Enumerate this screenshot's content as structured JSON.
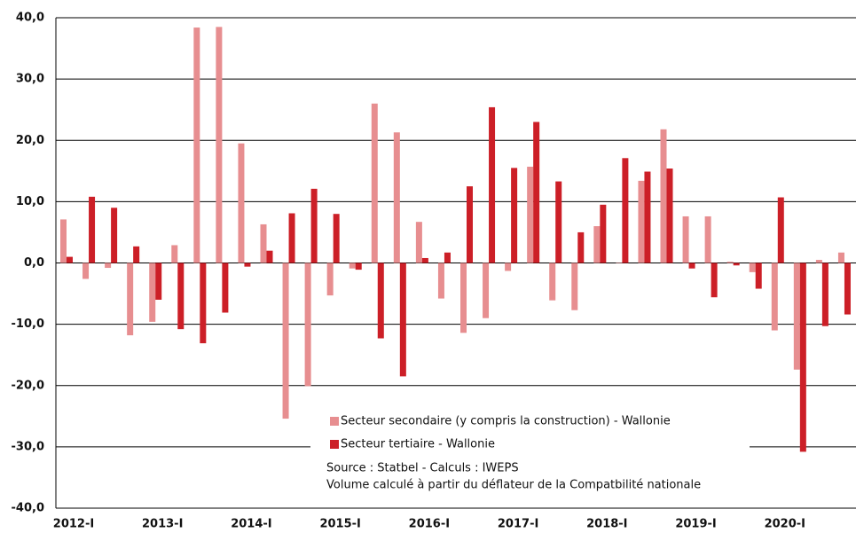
{
  "chart_data": {
    "type": "bar",
    "categories": [
      "2012-I",
      null,
      null,
      null,
      "2013-I",
      null,
      null,
      null,
      "2014-I",
      null,
      null,
      null,
      "2015-I",
      null,
      null,
      null,
      "2016-I",
      null,
      null,
      null,
      "2017-I",
      null,
      null,
      null,
      "2018-I",
      null,
      null,
      null,
      "2019-I",
      null,
      null,
      null,
      "2020-I",
      null,
      null,
      null
    ],
    "series": [
      {
        "name": "Secteur secondaire (y compris la construction) - Wallonie",
        "color": "#e78e90",
        "values": [
          7.1,
          -2.6,
          -0.8,
          -11.8,
          -9.6,
          2.9,
          38.4,
          38.5,
          19.5,
          6.3,
          -25.4,
          -20.1,
          -5.3,
          -0.9,
          26.0,
          21.3,
          6.7,
          -5.8,
          -11.4,
          -9.0,
          -1.3,
          15.7,
          -6.1,
          -7.7,
          6.0,
          0.0,
          13.4,
          21.8,
          7.6,
          7.6,
          0.2,
          -1.5,
          -11.0,
          -17.4,
          0.5,
          1.7
        ]
      },
      {
        "name": "Secteur tertiaire - Wallonie",
        "color": "#cc1f27",
        "values": [
          1.0,
          10.8,
          9.0,
          2.7,
          -6.0,
          -10.8,
          -13.1,
          -8.1,
          -0.6,
          2.0,
          8.1,
          12.1,
          8.0,
          -1.1,
          -12.3,
          -18.5,
          0.8,
          1.7,
          12.5,
          25.4,
          15.5,
          23.0,
          13.3,
          5.0,
          9.5,
          17.1,
          14.9,
          15.4,
          -0.9,
          -5.6,
          -0.4,
          -4.2,
          10.7,
          -30.8,
          -10.3,
          -8.4
        ]
      }
    ],
    "ylim": [
      -40,
      40
    ],
    "yticks": [
      {
        "value": -40,
        "label": "-40,0"
      },
      {
        "value": -30,
        "label": "-30,0"
      },
      {
        "value": -20,
        "label": "-20,0"
      },
      {
        "value": -10,
        "label": "-10,0"
      },
      {
        "value": 0,
        "label": "0,0"
      },
      {
        "value": 10,
        "label": "10,0"
      },
      {
        "value": 20,
        "label": "20,0"
      },
      {
        "value": 30,
        "label": "30,0"
      },
      {
        "value": 40,
        "label": "40,0"
      }
    ],
    "grid": true,
    "notes": [
      "Source : Statbel - Calculs : IWEPS",
      "Volume calculé à partir du déflateur de la Compatbilité nationale"
    ]
  }
}
